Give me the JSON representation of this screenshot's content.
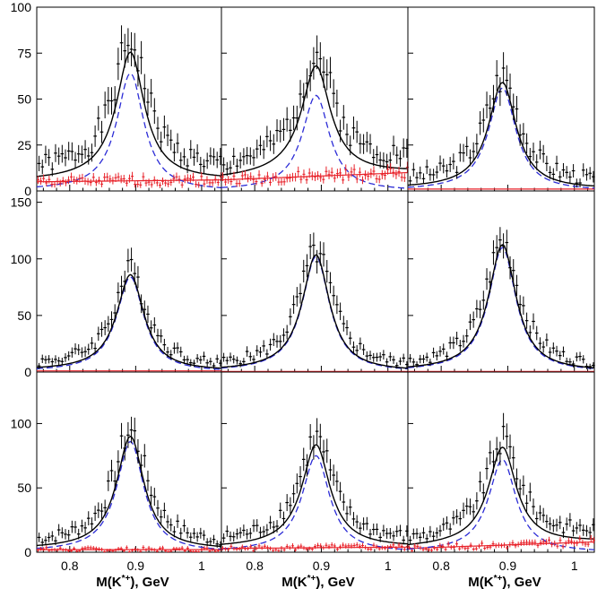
{
  "chart_data": {
    "type": "grid-of-fits",
    "x_label_base": "M(K",
    "x_label_sup": "*+",
    "x_label_tail": "), GeV",
    "xlim": [
      0.75,
      1.03
    ],
    "x_ticks": [
      0.8,
      0.9,
      1.0
    ],
    "x_tick_labels": [
      "0.8",
      "0.9",
      "1"
    ],
    "fit_model": {
      "resonance": "relativistic-like Breit-Wigner",
      "mass": 0.892,
      "width": 0.05
    },
    "colors": {
      "data": "#000000",
      "fit": "#000000",
      "signal": "#2b2bd6",
      "background": "#e8222a"
    },
    "rows": [
      {
        "ylim": [
          0,
          100
        ],
        "y_ticks": [
          0,
          25,
          50,
          75,
          100
        ],
        "y_tick_labels": [
          "0",
          "25",
          "50",
          "75",
          "100"
        ],
        "panels": [
          {
            "peak": 70,
            "signal_peak": 64,
            "background": {
              "level": [
                5,
                6
              ]
            },
            "data_seed": 1
          },
          {
            "peak": 60,
            "signal_peak": 52,
            "background": {
              "level": [
                6,
                10
              ]
            },
            "data_seed": 2
          },
          {
            "peak": 58,
            "signal_peak": 56,
            "background": {
              "level": [
                1,
                1
              ]
            },
            "data_seed": 3
          }
        ]
      },
      {
        "ylim": [
          0,
          160
        ],
        "y_ticks": [
          0,
          50,
          100,
          150
        ],
        "y_tick_labels": [
          "0",
          "50",
          "100",
          "150"
        ],
        "panels": [
          {
            "peak": 85,
            "signal_peak": 84,
            "background": {
              "level": [
                1,
                1
              ]
            },
            "data_seed": 4
          },
          {
            "peak": 103,
            "signal_peak": 102,
            "background": {
              "level": [
                0.5,
                0.5
              ]
            },
            "data_seed": 5
          },
          {
            "peak": 112,
            "signal_peak": 110,
            "background": {
              "level": [
                0.5,
                0.5
              ]
            },
            "data_seed": 6
          }
        ]
      },
      {
        "ylim": [
          0,
          140
        ],
        "y_ticks": [
          0,
          50,
          100
        ],
        "y_tick_labels": [
          "0",
          "50",
          "100"
        ],
        "panels": [
          {
            "peak": 88,
            "signal_peak": 86,
            "background": {
              "level": [
                2,
                2
              ]
            },
            "data_seed": 7
          },
          {
            "peak": 80,
            "signal_peak": 75,
            "background": {
              "level": [
                3,
                4
              ]
            },
            "data_seed": 8
          },
          {
            "peak": 76,
            "signal_peak": 72,
            "background": {
              "level": [
                3,
                8
              ]
            },
            "data_seed": 9
          }
        ]
      }
    ]
  }
}
